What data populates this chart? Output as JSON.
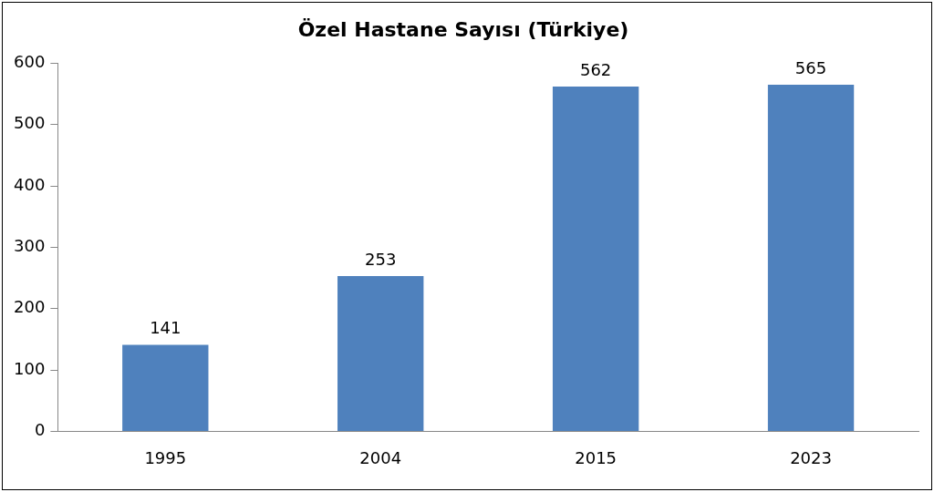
{
  "chart_data": {
    "type": "bar",
    "title": "Özel Hastane Sayısı (Türkiye)",
    "categories": [
      "1995",
      "2004",
      "2015",
      "2023"
    ],
    "values": [
      141,
      253,
      562,
      565
    ],
    "color": "#4f81bd",
    "ylim": [
      0,
      600
    ],
    "yticks": [
      0,
      100,
      200,
      300,
      400,
      500,
      600
    ],
    "data_labels": true,
    "grid": false,
    "legend": false
  }
}
